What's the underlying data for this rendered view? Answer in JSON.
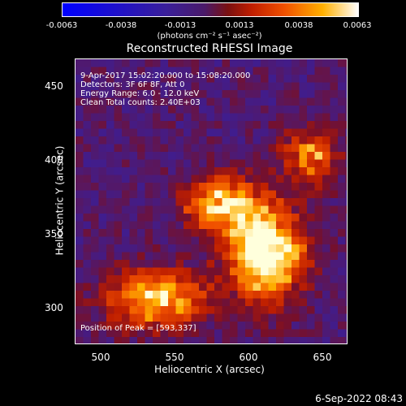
{
  "colorbar": {
    "ticks": [
      "-0.0063",
      "-0.0038",
      "-0.0013",
      "0.0013",
      "0.0038",
      "0.0063"
    ],
    "units": "(photons cm⁻² s⁻¹ asec⁻²)"
  },
  "plot": {
    "title": "Reconstructed RHESSI Image",
    "info_line1": "9-Apr-2017 15:02:20.000 to 15:08:20.000",
    "info_line2": "Detectors: 3F 6F 8F, Att 0",
    "info_line3": "Energy Range: 6.0 - 12.0 keV",
    "info_line4": "Clean     Total counts: 2.40E+03",
    "peak_label": "Position of Peak = [593,337]",
    "xlabel": "Heliocentric X (arcsec)",
    "ylabel": "Heliocentric Y (arcsec)",
    "xticks": [
      "500",
      "550",
      "600",
      "650"
    ],
    "yticks": [
      "450",
      "400",
      "350",
      "300"
    ]
  },
  "footer": {
    "timestamp": "6-Sep-2022 08:43"
  }
}
